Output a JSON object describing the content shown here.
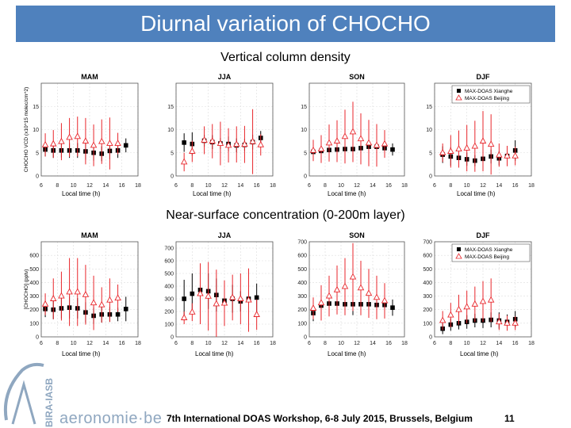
{
  "slide": {
    "title": "Diurnal variation of CHOCHO",
    "section1_title": "Vertical column density",
    "section2_title": "Near-surface concentration (0-200m layer)",
    "footer": "7th International DOAS Workshop, 6-8 July 2015, Brussels, Belgium",
    "page_number": "11",
    "logo_text": "aeronomie·be",
    "logo_vertical_text": "BIRA-IASB"
  },
  "colors": {
    "title_bar": "#4f81bd",
    "xianghe": "#000000",
    "beijing": "#e8262b",
    "logo": "#8fa7c0"
  },
  "chart_data": [
    {
      "type": "scatter",
      "title": "MAM",
      "xlabel": "Local time (h)",
      "ylabel": "CHOCHO VCD (x10^15 molec/cm^2)",
      "xlim": [
        6,
        18
      ],
      "ylim": [
        0,
        20
      ],
      "xticks": [
        6,
        8,
        10,
        12,
        14,
        16,
        18
      ],
      "yticks": [
        0,
        5,
        10,
        15
      ],
      "series": [
        {
          "name": "",
          "marker": "square",
          "x": [
            6.5,
            7.5,
            8.5,
            9.5,
            10.5,
            11.5,
            12.5,
            13.5,
            14.5,
            15.5,
            16.5
          ],
          "values": [
            5.7,
            5.5,
            5.5,
            5.5,
            5.5,
            5.3,
            5.0,
            4.8,
            5.4,
            5.5,
            6.6
          ],
          "err": [
            1.5,
            1.6,
            1.5,
            1.6,
            1.6,
            1.8,
            1.7,
            1.6,
            1.8,
            1.6,
            1.5
          ]
        },
        {
          "name": "",
          "marker": "triangle",
          "x": [
            6.5,
            7.5,
            8.5,
            9.5,
            10.5,
            11.5,
            12.5,
            13.5,
            14.5,
            15.5
          ],
          "values": [
            6.7,
            6.9,
            7.4,
            8.3,
            8.5,
            7.5,
            6.6,
            7.4,
            7.0,
            7.0
          ],
          "err": [
            2.5,
            3.0,
            4.0,
            4.2,
            4.3,
            5.0,
            4.5,
            4.8,
            5.6,
            2.3
          ]
        }
      ]
    },
    {
      "type": "scatter",
      "title": "JJA",
      "xlabel": "Local time (h)",
      "ylabel": "",
      "xlim": [
        6,
        18
      ],
      "ylim": [
        0,
        20
      ],
      "xticks": [
        6,
        8,
        10,
        12,
        14,
        16,
        18
      ],
      "yticks": [
        0,
        5,
        10,
        15
      ],
      "series": [
        {
          "name": "",
          "marker": "square",
          "x": [
            7.0,
            8.0,
            9.5,
            10.5,
            11.5,
            12.5,
            13.5,
            14.5,
            15.5,
            16.5
          ],
          "values": [
            7.2,
            6.9,
            7.6,
            7.3,
            7.0,
            6.9,
            6.6,
            6.7,
            7.3,
            8.2
          ],
          "err": [
            2.0,
            2.5,
            1.3,
            1.5,
            1.2,
            1.6,
            1.5,
            1.3,
            1.6,
            1.5
          ]
        },
        {
          "name": "",
          "marker": "triangle",
          "x": [
            7.0,
            8.0,
            9.5,
            10.5,
            11.5,
            12.5,
            13.5,
            14.5,
            15.5,
            16.5
          ],
          "values": [
            3.0,
            5.3,
            7.7,
            7.5,
            7.0,
            6.6,
            6.8,
            6.8,
            7.4,
            6.7
          ],
          "err": [
            2.0,
            2.3,
            3.0,
            3.7,
            4.7,
            3.7,
            3.9,
            4.0,
            7.0,
            2.3
          ]
        }
      ]
    },
    {
      "type": "scatter",
      "title": "SON",
      "xlabel": "Local time (h)",
      "ylabel": "",
      "xlim": [
        6,
        18
      ],
      "ylim": [
        0,
        20
      ],
      "xticks": [
        6,
        8,
        10,
        12,
        14,
        16,
        18
      ],
      "yticks": [
        0,
        5,
        10,
        15
      ],
      "series": [
        {
          "name": "",
          "marker": "square",
          "x": [
            6.5,
            7.5,
            8.5,
            9.5,
            10.5,
            11.5,
            12.5,
            13.5,
            14.5,
            15.5,
            16.5
          ],
          "values": [
            5.2,
            5.4,
            5.6,
            5.7,
            5.8,
            5.8,
            6.0,
            6.3,
            6.3,
            6.0,
            5.7
          ],
          "err": [
            1.5,
            1.6,
            1.6,
            1.5,
            1.6,
            1.8,
            1.7,
            1.6,
            1.7,
            1.6,
            1.3
          ]
        },
        {
          "name": "",
          "marker": "triangle",
          "x": [
            6.5,
            7.5,
            8.5,
            9.5,
            10.5,
            11.5,
            12.5,
            13.5,
            14.5,
            15.5
          ],
          "values": [
            5.5,
            5.8,
            7.1,
            7.5,
            8.5,
            9.5,
            8.0,
            7.1,
            6.6,
            6.9
          ],
          "err": [
            2.3,
            3.0,
            4.0,
            4.5,
            5.8,
            6.5,
            5.5,
            5.0,
            4.6,
            3.0
          ]
        }
      ]
    },
    {
      "type": "scatter",
      "title": "DJF",
      "xlabel": "Local time (h)",
      "ylabel": "",
      "xlim": [
        6,
        18
      ],
      "ylim": [
        0,
        20
      ],
      "xticks": [
        6,
        8,
        10,
        12,
        14,
        16,
        18
      ],
      "yticks": [
        0,
        5,
        10,
        15
      ],
      "legend": {
        "position": "top-right",
        "entries": [
          "MAX-DOAS Xianghe",
          "MAX-DOAS Beijing"
        ]
      },
      "series": [
        {
          "name": "MAX-DOAS Xianghe",
          "marker": "square",
          "x": [
            7.0,
            8.0,
            9.0,
            10.0,
            11.0,
            12.0,
            13.0,
            14.0,
            15.0,
            16.0
          ],
          "values": [
            4.6,
            4.2,
            3.9,
            3.6,
            3.3,
            3.7,
            4.2,
            3.8,
            4.3,
            5.5
          ],
          "err": [
            1.8,
            2.0,
            1.5,
            1.4,
            1.2,
            1.3,
            1.5,
            1.5,
            1.6,
            2.2
          ]
        },
        {
          "name": "MAX-DOAS Beijing",
          "marker": "triangle",
          "x": [
            7.0,
            8.0,
            9.0,
            10.0,
            11.0,
            12.0,
            13.0,
            14.0,
            15.0,
            16.0
          ],
          "values": [
            5.0,
            5.3,
            5.8,
            6.0,
            6.4,
            7.5,
            6.8,
            4.5,
            4.3,
            4.3
          ],
          "err": [
            2.0,
            3.5,
            4.0,
            5.0,
            5.5,
            6.5,
            6.5,
            2.5,
            2.2,
            2.0
          ]
        }
      ]
    },
    {
      "type": "scatter",
      "title": "MAM",
      "xlabel": "Local time (h)",
      "ylabel": "[CHOCHO] (pptv)",
      "xlim": [
        6,
        18
      ],
      "ylim": [
        0,
        700
      ],
      "xticks": [
        6,
        8,
        10,
        12,
        14,
        16,
        18
      ],
      "yticks": [
        0,
        100,
        200,
        300,
        400,
        500,
        600
      ],
      "series": [
        {
          "name": "",
          "marker": "square",
          "x": [
            6.5,
            7.5,
            8.5,
            9.5,
            10.5,
            11.5,
            12.5,
            13.5,
            14.5,
            15.5,
            16.5
          ],
          "values": [
            205,
            200,
            210,
            215,
            210,
            180,
            155,
            165,
            165,
            165,
            205
          ],
          "err": [
            60,
            70,
            75,
            80,
            75,
            75,
            60,
            60,
            55,
            50,
            90
          ]
        },
        {
          "name": "",
          "marker": "triangle",
          "x": [
            6.5,
            7.5,
            8.5,
            9.5,
            10.5,
            11.5,
            12.5,
            13.5,
            14.5,
            15.5
          ],
          "values": [
            240,
            280,
            300,
            330,
            330,
            310,
            250,
            235,
            270,
            285
          ],
          "err": [
            80,
            150,
            180,
            250,
            250,
            220,
            200,
            130,
            160,
            100
          ]
        }
      ]
    },
    {
      "type": "scatter",
      "title": "JJA",
      "xlabel": "Local time (h)",
      "ylabel": "",
      "xlim": [
        6,
        18
      ],
      "ylim": [
        0,
        750
      ],
      "xticks": [
        6,
        8,
        10,
        12,
        14,
        16,
        18
      ],
      "yticks": [
        0,
        100,
        200,
        300,
        400,
        500,
        600,
        700
      ],
      "series": [
        {
          "name": "",
          "marker": "square",
          "x": [
            7.0,
            8.0,
            9.0,
            10.0,
            11.0,
            12.0,
            13.0,
            14.0,
            15.0,
            16.0
          ],
          "values": [
            300,
            340,
            370,
            360,
            330,
            285,
            300,
            280,
            300,
            310
          ],
          "err": [
            150,
            160,
            170,
            140,
            130,
            100,
            110,
            80,
            100,
            110
          ]
        },
        {
          "name": "",
          "marker": "triangle",
          "x": [
            7.0,
            8.0,
            9.0,
            10.0,
            11.0,
            12.0,
            13.0,
            14.0,
            15.0,
            16.0
          ],
          "values": [
            150,
            195,
            340,
            320,
            260,
            265,
            310,
            300,
            290,
            175
          ],
          "err": [
            50,
            70,
            240,
            270,
            270,
            180,
            180,
            200,
            250,
            120
          ]
        }
      ]
    },
    {
      "type": "scatter",
      "title": "SON",
      "xlabel": "Local time (h)",
      "ylabel": "",
      "xlim": [
        6,
        18
      ],
      "ylim": [
        0,
        700
      ],
      "xticks": [
        6,
        8,
        10,
        12,
        14,
        16,
        18
      ],
      "yticks": [
        0,
        100,
        200,
        300,
        400,
        500,
        600,
        700
      ],
      "series": [
        {
          "name": "",
          "marker": "square",
          "x": [
            6.5,
            7.5,
            8.5,
            9.5,
            10.5,
            11.5,
            12.5,
            13.5,
            14.5,
            15.5,
            16.5
          ],
          "values": [
            175,
            230,
            245,
            245,
            240,
            240,
            240,
            240,
            235,
            235,
            215
          ],
          "err": [
            60,
            70,
            70,
            75,
            80,
            80,
            80,
            80,
            80,
            70,
            60
          ]
        },
        {
          "name": "",
          "marker": "triangle",
          "x": [
            6.5,
            7.5,
            8.5,
            9.5,
            10.5,
            11.5,
            12.5,
            13.5,
            14.5,
            15.5
          ],
          "values": [
            210,
            250,
            300,
            345,
            370,
            440,
            360,
            320,
            290,
            265
          ],
          "err": [
            80,
            130,
            150,
            180,
            210,
            250,
            200,
            180,
            160,
            130
          ]
        }
      ]
    },
    {
      "type": "scatter",
      "title": "DJF",
      "xlabel": "Local time (h)",
      "ylabel": "",
      "xlim": [
        6,
        18
      ],
      "ylim": [
        0,
        700
      ],
      "xticks": [
        6,
        8,
        10,
        12,
        14,
        16,
        18
      ],
      "yticks": [
        0,
        100,
        200,
        300,
        400,
        500,
        600,
        700
      ],
      "legend": {
        "position": "top-right",
        "entries": [
          "MAX-DOAS Xianghe",
          "MAX-DOAS Beijing"
        ]
      },
      "series": [
        {
          "name": "MAX-DOAS Xianghe",
          "marker": "square",
          "x": [
            7.0,
            8.0,
            9.0,
            10.0,
            11.0,
            12.0,
            13.0,
            14.0,
            15.0,
            16.0
          ],
          "values": [
            60,
            90,
            100,
            110,
            120,
            120,
            125,
            120,
            110,
            130
          ],
          "err": [
            40,
            45,
            45,
            50,
            50,
            55,
            55,
            60,
            55,
            60
          ]
        },
        {
          "name": "MAX-DOAS Beijing",
          "marker": "triangle",
          "x": [
            7.0,
            8.0,
            9.0,
            10.0,
            11.0,
            12.0,
            13.0,
            14.0,
            15.0,
            16.0
          ],
          "values": [
            120,
            160,
            200,
            220,
            240,
            260,
            270,
            110,
            100,
            100
          ],
          "err": [
            70,
            90,
            110,
            120,
            130,
            150,
            160,
            60,
            55,
            50
          ]
        }
      ]
    }
  ]
}
